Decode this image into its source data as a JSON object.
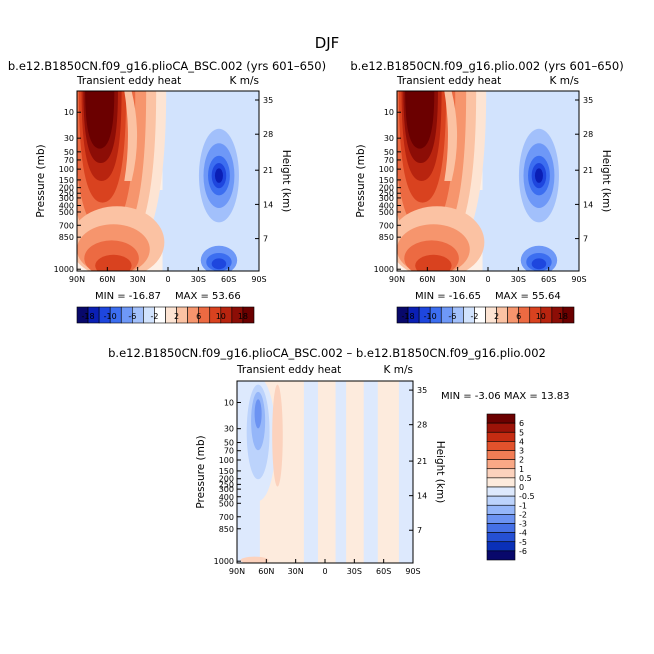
{
  "figure_title": "DJF",
  "chart_data": [
    {
      "type": "contour",
      "panel": "left",
      "run_title": "b.e12.B1850CN.f09_g16.plioCA_BSC.002 (yrs 601–650)",
      "left_string": "Transient eddy heat",
      "right_string": "K m/s",
      "ylabel": "Pressure (mb)",
      "ylabel_right": "Height (km)",
      "x_tick_labels": [
        "90N",
        "60N",
        "30N",
        "0",
        "30S",
        "60S",
        "90S"
      ],
      "y_tick_labels": [
        "10",
        "30",
        "50",
        "70",
        "100",
        "150",
        "200",
        "250",
        "300",
        "400",
        "500",
        "700",
        "850",
        "1000"
      ],
      "height_tick_labels": [
        "35",
        "28",
        "21",
        "14",
        "7"
      ],
      "min_label": "MIN = -16.87",
      "max_label": "MAX = 53.66",
      "min": -16.87,
      "max": 53.66,
      "colorbar_tick_labels": [
        "-18",
        "-10",
        "-6",
        "-2",
        "2",
        "6",
        "10",
        "18"
      ]
    },
    {
      "type": "contour",
      "panel": "right",
      "run_title": "b.e12.B1850CN.f09_g16.plio.002 (yrs 601–650)",
      "left_string": "Transient eddy heat",
      "right_string": "K m/s",
      "ylabel": "Pressure (mb)",
      "ylabel_right": "Height (km)",
      "x_tick_labels": [
        "90N",
        "60N",
        "30N",
        "0",
        "30S",
        "60S",
        "90S"
      ],
      "y_tick_labels": [
        "10",
        "30",
        "50",
        "70",
        "100",
        "150",
        "200",
        "250",
        "300",
        "400",
        "500",
        "700",
        "850",
        "1000"
      ],
      "height_tick_labels": [
        "35",
        "28",
        "21",
        "14",
        "7"
      ],
      "min_label": "MIN = -16.65",
      "max_label": "MAX = 55.64",
      "min": -16.65,
      "max": 55.64,
      "colorbar_tick_labels": [
        "-18",
        "-10",
        "-6",
        "-2",
        "2",
        "6",
        "10",
        "18"
      ]
    },
    {
      "type": "contour",
      "panel": "difference",
      "run_title": "b.e12.B1850CN.f09_g16.plioCA_BSC.002 – b.e12.B1850CN.f09_g16.plio.002",
      "left_string": "Transient eddy heat",
      "right_string": "K m/s",
      "ylabel": "Pressure (mb)",
      "ylabel_right": "Height (km)",
      "x_tick_labels": [
        "90N",
        "60N",
        "30N",
        "0",
        "30S",
        "60S",
        "90S"
      ],
      "y_tick_labels": [
        "10",
        "30",
        "50",
        "70",
        "100",
        "150",
        "200",
        "250",
        "300",
        "400",
        "500",
        "700",
        "850",
        "1000"
      ],
      "height_tick_labels": [
        "35",
        "28",
        "21",
        "14",
        "7"
      ],
      "minmax_label": "MIN = -3.06   MAX = 13.83",
      "min": -3.06,
      "max": 13.83,
      "colorbar_tick_labels": [
        "6",
        "5",
        "4",
        "3",
        "2",
        "1",
        "0.5",
        "0",
        "-0.5",
        "-1",
        "-2",
        "-3",
        "-4",
        "-5",
        "-6"
      ]
    }
  ],
  "colors": {
    "full_scale": [
      "#08086b",
      "#0a1fb5",
      "#1e46de",
      "#3c6ef0",
      "#6e98f7",
      "#a2c0fb",
      "#d2e3fd",
      "#ffffff",
      "#fde4d3",
      "#fbc2a3",
      "#f6956d",
      "#ec6a42",
      "#d9421f",
      "#b8240f",
      "#8c0d06",
      "#6b0000"
    ],
    "diff_scale": [
      "#6b0000",
      "#9c1308",
      "#c52c12",
      "#e2522c",
      "#f27d55",
      "#f9a886",
      "#fcd2bd",
      "#fdebdd",
      "#dde9fd",
      "#bcd3fc",
      "#95b6f9",
      "#6c93f2",
      "#4570e6",
      "#2550d4",
      "#0a30b8",
      "#08086b"
    ]
  }
}
